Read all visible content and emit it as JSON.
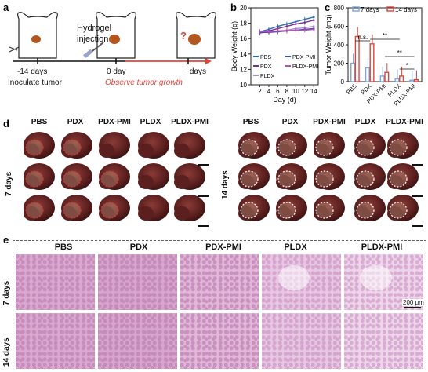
{
  "panels": {
    "a": "a",
    "b": "b",
    "c": "c",
    "d": "d",
    "e": "e"
  },
  "panel_a": {
    "hydrogel_label": "Hydrogel",
    "injection_label": "injection",
    "t1": "-14 days",
    "t2": "0 day",
    "t3": "~days",
    "caption1": "Inoculate tumor",
    "caption2": "Observe tumor growth",
    "question": "?"
  },
  "panel_d": {
    "groups": [
      "PBS",
      "PDX",
      "PDX-PMI",
      "PLDX",
      "PLDX-PMI"
    ],
    "row_7": "7 days",
    "row_14": "14 days"
  },
  "panel_e": {
    "groups": [
      "PBS",
      "PDX",
      "PDX-PMI",
      "PLDX",
      "PLDX-PMI"
    ],
    "row_7": "7 days",
    "row_14": "14 days",
    "scale": "200 μm"
  },
  "chart_data": [
    {
      "panel": "b",
      "type": "line",
      "xlabel": "Day (d)",
      "ylabel": "Body Weight (g)",
      "x": [
        2,
        4,
        6,
        8,
        10,
        12,
        14
      ],
      "xlim": [
        0,
        15
      ],
      "ylim": [
        10,
        20
      ],
      "yticks": [
        10,
        12,
        14,
        16,
        18,
        20
      ],
      "series": [
        {
          "name": "PBS",
          "values": [
            16.9,
            17.2,
            17.6,
            17.9,
            18.2,
            18.5,
            18.8
          ]
        },
        {
          "name": "PDX",
          "values": [
            16.8,
            17.0,
            17.3,
            17.6,
            17.9,
            18.1,
            18.4
          ]
        },
        {
          "name": "PLDX",
          "values": [
            16.7,
            16.9,
            17.0,
            17.1,
            17.3,
            17.4,
            17.6
          ]
        },
        {
          "name": "PDX-PMI",
          "values": [
            16.8,
            16.8,
            16.9,
            17.0,
            17.1,
            17.2,
            17.3
          ]
        },
        {
          "name": "PLDX-PMI",
          "values": [
            16.9,
            16.9,
            17.0,
            17.0,
            17.1,
            17.1,
            17.2
          ]
        }
      ],
      "colors": [
        "#2a6ebb",
        "#7a2e8e",
        "#a78fd0",
        "#3a4fb0",
        "#c04ab0"
      ]
    },
    {
      "panel": "c",
      "type": "bar",
      "ylabel": "Tumor Weight (mg)",
      "categories": [
        "PBS",
        "PDX",
        "PDX-PMI",
        "PLDX",
        "PLDX-PMI"
      ],
      "ylim": [
        0,
        800
      ],
      "yticks": [
        0,
        200,
        400,
        600,
        800
      ],
      "series": [
        {
          "name": "7 days",
          "values": [
            200,
            150,
            60,
            30,
            15
          ]
        },
        {
          "name": "14 days",
          "values": [
            490,
            410,
            100,
            60,
            20
          ]
        }
      ],
      "colors": [
        "#7aa6d6",
        "#e0443a"
      ],
      "annotations": [
        "n.s.",
        "**",
        "**",
        "*"
      ]
    }
  ]
}
